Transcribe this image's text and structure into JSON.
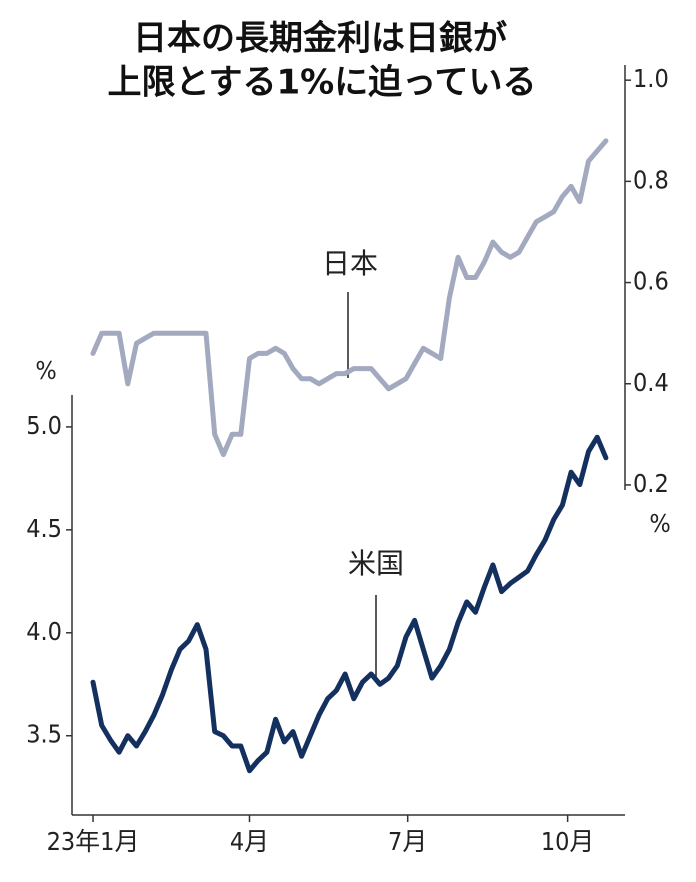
{
  "chart_data": {
    "type": "line",
    "title": [
      "日本の長期金利は日銀が",
      "上限とする1%に迫っている"
    ],
    "ylabel": "%",
    "y2label": "%",
    "x": [
      0,
      5,
      10,
      15,
      20,
      25,
      30,
      35,
      40,
      45,
      50,
      55,
      60,
      65,
      70,
      75,
      80,
      85,
      90,
      95,
      100,
      105,
      110,
      115,
      120,
      125,
      130,
      135,
      140,
      145,
      150,
      155,
      160,
      165,
      170,
      175,
      180,
      185,
      190,
      195,
      200,
      205,
      210,
      215,
      220,
      225,
      230,
      235,
      240,
      245,
      250,
      255,
      260,
      265,
      270,
      275,
      280,
      285,
      290,
      295
    ],
    "xlim": [
      -12.1,
      306
    ],
    "xticks": [
      {
        "value": 0,
        "label": "23年1月"
      },
      {
        "value": 90,
        "label": "4月"
      },
      {
        "value": 181,
        "label": "7月"
      },
      {
        "value": 273,
        "label": "10月"
      }
    ],
    "ylim": [
      3.115,
      5.155
    ],
    "yticks": [
      3.5,
      {
        "value": 4,
        "label": "4.0"
      },
      4.5,
      {
        "value": 5,
        "label": "5.0"
      }
    ],
    "y2lim": [
      0.19,
      1.03
    ],
    "y2ticks": [
      0.2,
      0.4,
      0.6,
      0.8,
      {
        "value": 1,
        "label": "1.0"
      }
    ],
    "series": [
      {
        "name": "日本",
        "color": "#a3a9be",
        "axis": "y2",
        "values": [
          0.46,
          0.5,
          0.5,
          0.5,
          0.4,
          0.48,
          0.49,
          0.5,
          0.5,
          0.5,
          0.5,
          0.5,
          0.5,
          0.5,
          0.3,
          0.26,
          0.3,
          0.3,
          0.45,
          0.46,
          0.46,
          0.47,
          0.46,
          0.43,
          0.41,
          0.41,
          0.4,
          0.41,
          0.42,
          0.42,
          0.43,
          0.43,
          0.43,
          0.41,
          0.39,
          0.4,
          0.41,
          0.44,
          0.47,
          0.46,
          0.45,
          0.57,
          0.65,
          0.61,
          0.61,
          0.64,
          0.68,
          0.66,
          0.65,
          0.66,
          0.69,
          0.72,
          0.73,
          0.74,
          0.77,
          0.79,
          0.76,
          0.84,
          0.86,
          0.88
        ]
      },
      {
        "name": "米国",
        "color": "#13305f",
        "values": [
          3.76,
          3.55,
          3.48,
          3.42,
          3.5,
          3.45,
          3.52,
          3.6,
          3.7,
          3.82,
          3.92,
          3.96,
          4.04,
          3.92,
          3.52,
          3.5,
          3.45,
          3.45,
          3.33,
          3.38,
          3.42,
          3.58,
          3.47,
          3.52,
          3.4,
          3.5,
          3.6,
          3.68,
          3.72,
          3.8,
          3.68,
          3.76,
          3.8,
          3.75,
          3.78,
          3.84,
          3.98,
          4.06,
          3.92,
          3.78,
          3.84,
          3.92,
          4.05,
          4.15,
          4.1,
          4.22,
          4.33,
          4.2,
          4.24,
          4.27,
          4.3,
          4.38,
          4.45,
          4.55,
          4.62,
          4.78,
          4.72,
          4.88,
          4.95,
          4.85
        ]
      }
    ]
  }
}
